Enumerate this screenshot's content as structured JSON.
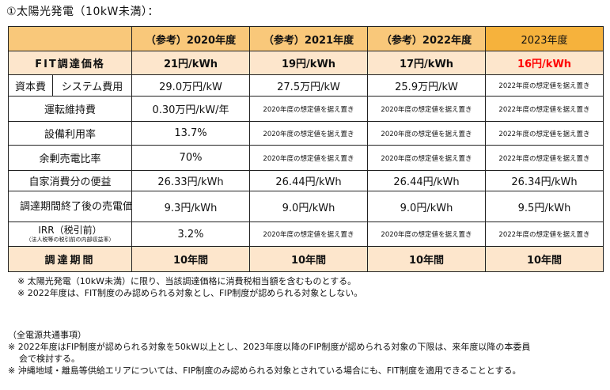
{
  "heading": "①太陽光発電（10kW未満）：",
  "columns": [
    "（参考）2020年度",
    "（参考）2021年度",
    "（参考）2022年度",
    "2023年度"
  ],
  "fit_row": {
    "label": "FIT調達価格",
    "values": [
      "21円/kWh",
      "19円/kWh",
      "17円/kWh",
      "16円/kWh"
    ]
  },
  "capital_row": {
    "group": "資本費",
    "label": "システム費用",
    "values": [
      "29.0万円/kW",
      "27.5万円/kW",
      "25.9万円/kW",
      "2022年度の想定値を据え置き"
    ]
  },
  "rows": [
    {
      "label": "運転維持費",
      "values": [
        "0.30万円/kW/年",
        "2020年度の想定値を据え置き",
        "2020年度の想定値を据え置き",
        "2022年度の想定値を据え置き"
      ]
    },
    {
      "label": "設備利用率",
      "values": [
        "13.7%",
        "2020年度の想定値を据え置き",
        "2020年度の想定値を据え置き",
        "2022年度の想定値を据え置き"
      ]
    },
    {
      "label": "余剰売電比率",
      "values": [
        "70%",
        "2020年度の想定値を据え置き",
        "2020年度の想定値を据え置き",
        "2022年度の想定値を据え置き"
      ]
    },
    {
      "label": "自家消費分の便益",
      "values": [
        "26.33円/kWh",
        "26.44円/kWh",
        "26.44円/kWh",
        "26.34円/kWh"
      ]
    },
    {
      "label": "調達期間終了後の売電価格",
      "values": [
        "9.3円/kWh",
        "9.0円/kWh",
        "9.0円/kWh",
        "9.5円/kWh"
      ]
    }
  ],
  "irr_row": {
    "label": "IRR（税引前）",
    "sublabel": "（法人税等の税引前の内部収益率）",
    "values": [
      "3.2%",
      "2020年度の想定値を据え置き",
      "2020年度の想定値を据え置き",
      "2022年度の想定値を据え置き"
    ]
  },
  "period_row": {
    "label": "調達期間",
    "values": [
      "10年間",
      "10年間",
      "10年間",
      "10年間"
    ]
  },
  "notes": [
    "※ 太陽光発電（10kW未満）に限り、当該調達価格に消費税相当額を含むものとする。",
    "※ 2022年度は、FIT制度のみ認められる対象とし、FIP制度が認められる対象としない。"
  ],
  "common_notes": {
    "title": "（全電源共通事項）",
    "items": [
      "※ 2022年度はFIP制度が認められる対象を50kW以上とし、2023年度以降のFIP制度が認められる対象の下限は、来年度以降の本委員",
      "会で検討する。",
      "※ 沖縄地域・離島等供給エリアについては、FIP制度のみ認められる対象とされている場合にも、FIT制度を適用できることとする。"
    ]
  },
  "colors": {
    "header_bg": "#f9c87a",
    "header_2023_bg": "#f6b23c",
    "highlight_row_bg": "#fde6cc",
    "emphasis_red": "#ff0000"
  }
}
